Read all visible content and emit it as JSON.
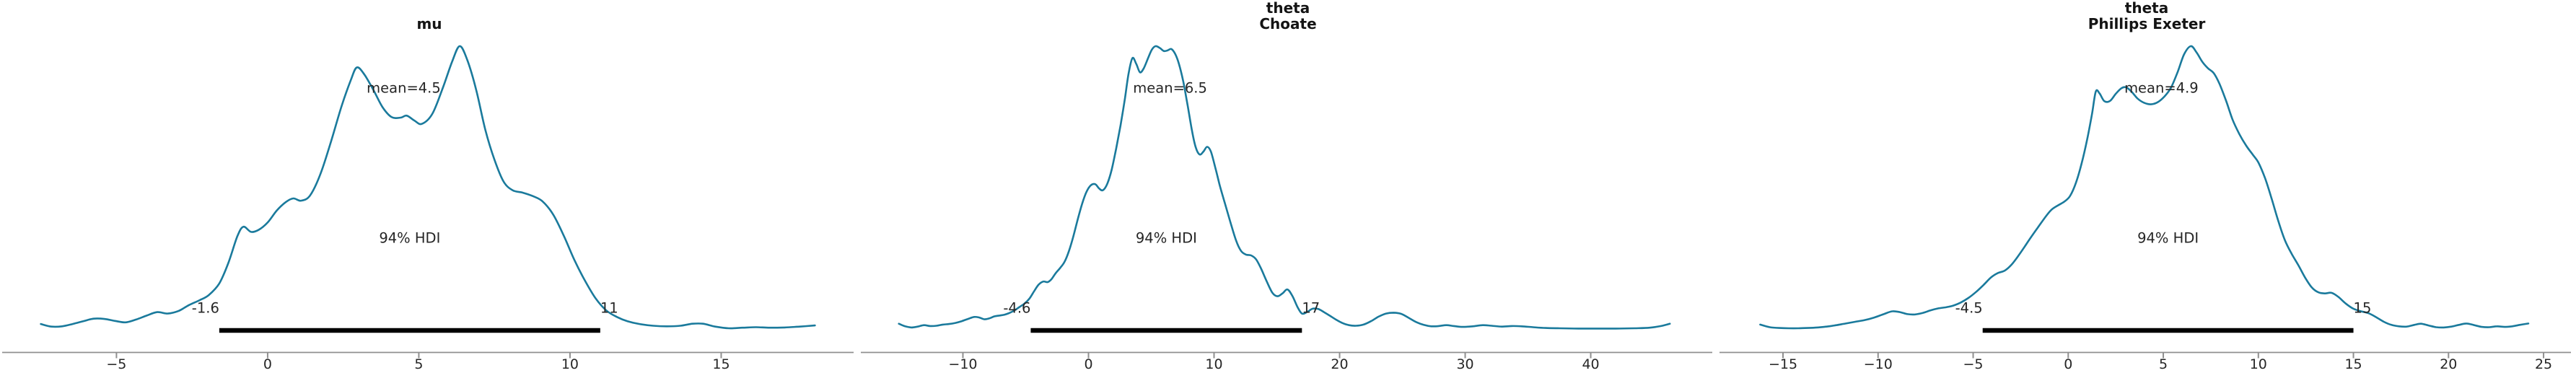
{
  "figure": {
    "background": "#ffffff",
    "curve_color": "#1a7a9c",
    "hdi_line_color": "#000000",
    "axis_color": "#8f8f8f",
    "tick_mark_color": "#8f8f8f",
    "tick_label_color": "#262626",
    "annotation_color": "#262626",
    "title_color": "#141414"
  },
  "chart_data": [
    {
      "type": "kde",
      "title": "mu",
      "title_line1": "mu",
      "title_line2": "",
      "mean": 4.5,
      "mean_label": "mean=4.5",
      "hdi_text": "94% HDI",
      "hdi_lo": -1.6,
      "hdi_hi": 11,
      "hdi_lo_label": "-1.6",
      "hdi_hi_label": "11",
      "x_range": [
        -8.78,
        19.38
      ],
      "x_ticks": [
        {
          "v": -5,
          "label": "−5"
        },
        {
          "v": 0,
          "label": "0"
        },
        {
          "v": 5,
          "label": "5"
        },
        {
          "v": 10,
          "label": "10"
        },
        {
          "v": 15,
          "label": "15"
        }
      ],
      "points": [
        [
          -7.5,
          0.02
        ],
        [
          -7.15,
          0.011
        ],
        [
          -6.8,
          0.012
        ],
        [
          -6.45,
          0.02
        ],
        [
          -6.1,
          0.03
        ],
        [
          -5.75,
          0.039
        ],
        [
          -5.4,
          0.038
        ],
        [
          -5.05,
          0.031
        ],
        [
          -4.7,
          0.026
        ],
        [
          -4.35,
          0.036
        ],
        [
          -4.0,
          0.05
        ],
        [
          -3.65,
          0.062
        ],
        [
          -3.3,
          0.057
        ],
        [
          -2.95,
          0.066
        ],
        [
          -2.6,
          0.087
        ],
        [
          -2.25,
          0.104
        ],
        [
          -1.95,
          0.122
        ],
        [
          -1.6,
          0.163
        ],
        [
          -1.3,
          0.235
        ],
        [
          -1.0,
          0.33
        ],
        [
          -0.8,
          0.363
        ],
        [
          -0.55,
          0.345
        ],
        [
          -0.3,
          0.352
        ],
        [
          0.0,
          0.378
        ],
        [
          0.3,
          0.42
        ],
        [
          0.6,
          0.45
        ],
        [
          0.85,
          0.463
        ],
        [
          1.1,
          0.455
        ],
        [
          1.4,
          0.473
        ],
        [
          1.75,
          0.55
        ],
        [
          2.1,
          0.665
        ],
        [
          2.45,
          0.79
        ],
        [
          2.75,
          0.88
        ],
        [
          2.95,
          0.925
        ],
        [
          3.2,
          0.9
        ],
        [
          3.5,
          0.845
        ],
        [
          3.8,
          0.785
        ],
        [
          4.1,
          0.75
        ],
        [
          4.4,
          0.748
        ],
        [
          4.6,
          0.755
        ],
        [
          4.85,
          0.738
        ],
        [
          5.1,
          0.726
        ],
        [
          5.45,
          0.762
        ],
        [
          5.8,
          0.855
        ],
        [
          6.1,
          0.945
        ],
        [
          6.35,
          1.0
        ],
        [
          6.6,
          0.952
        ],
        [
          6.9,
          0.845
        ],
        [
          7.2,
          0.705
        ],
        [
          7.5,
          0.6
        ],
        [
          7.8,
          0.523
        ],
        [
          8.1,
          0.492
        ],
        [
          8.45,
          0.483
        ],
        [
          8.8,
          0.47
        ],
        [
          9.1,
          0.452
        ],
        [
          9.45,
          0.405
        ],
        [
          9.8,
          0.33
        ],
        [
          10.15,
          0.245
        ],
        [
          10.5,
          0.172
        ],
        [
          10.85,
          0.11
        ],
        [
          11.2,
          0.068
        ],
        [
          11.55,
          0.045
        ],
        [
          11.9,
          0.03
        ],
        [
          12.3,
          0.02
        ],
        [
          12.75,
          0.014
        ],
        [
          13.2,
          0.012
        ],
        [
          13.65,
          0.014
        ],
        [
          14.05,
          0.021
        ],
        [
          14.4,
          0.021
        ],
        [
          14.8,
          0.011
        ],
        [
          15.25,
          0.005
        ],
        [
          15.7,
          0.007
        ],
        [
          16.15,
          0.009
        ],
        [
          16.6,
          0.007
        ],
        [
          17.1,
          0.008
        ],
        [
          17.6,
          0.011
        ],
        [
          18.1,
          0.015
        ]
      ]
    },
    {
      "type": "kde",
      "title": "theta Choate",
      "title_line1": "theta",
      "title_line2": "Choate",
      "mean": 6.5,
      "mean_label": "mean=6.5",
      "hdi_text": "94% HDI",
      "hdi_lo": -4.6,
      "hdi_hi": 17,
      "hdi_lo_label": "-4.6",
      "hdi_hi_label": "17",
      "x_range": [
        -18.13,
        49.68
      ],
      "x_ticks": [
        {
          "v": -10,
          "label": "−10"
        },
        {
          "v": 0,
          "label": "0"
        },
        {
          "v": 10,
          "label": "10"
        },
        {
          "v": 20,
          "label": "20"
        },
        {
          "v": 30,
          "label": "30"
        },
        {
          "v": 40,
          "label": "40"
        }
      ],
      "points": [
        [
          -15.1,
          0.021
        ],
        [
          -14.6,
          0.012
        ],
        [
          -14.1,
          0.008
        ],
        [
          -13.6,
          0.011
        ],
        [
          -13.1,
          0.016
        ],
        [
          -12.6,
          0.013
        ],
        [
          -12.1,
          0.014
        ],
        [
          -11.6,
          0.018
        ],
        [
          -11.1,
          0.02
        ],
        [
          -10.6,
          0.024
        ],
        [
          -10.1,
          0.03
        ],
        [
          -9.6,
          0.038
        ],
        [
          -9.1,
          0.045
        ],
        [
          -8.7,
          0.043
        ],
        [
          -8.3,
          0.037
        ],
        [
          -7.9,
          0.04
        ],
        [
          -7.5,
          0.047
        ],
        [
          -7.1,
          0.05
        ],
        [
          -6.7,
          0.053
        ],
        [
          -6.3,
          0.059
        ],
        [
          -5.9,
          0.068
        ],
        [
          -5.5,
          0.08
        ],
        [
          -5.1,
          0.092
        ],
        [
          -4.7,
          0.11
        ],
        [
          -4.3,
          0.138
        ],
        [
          -3.95,
          0.16
        ],
        [
          -3.6,
          0.17
        ],
        [
          -3.25,
          0.168
        ],
        [
          -2.95,
          0.178
        ],
        [
          -2.6,
          0.2
        ],
        [
          -2.25,
          0.218
        ],
        [
          -1.9,
          0.24
        ],
        [
          -1.55,
          0.278
        ],
        [
          -1.2,
          0.33
        ],
        [
          -0.85,
          0.39
        ],
        [
          -0.5,
          0.445
        ],
        [
          -0.15,
          0.487
        ],
        [
          0.2,
          0.51
        ],
        [
          0.55,
          0.513
        ],
        [
          0.85,
          0.498
        ],
        [
          1.15,
          0.492
        ],
        [
          1.5,
          0.515
        ],
        [
          1.85,
          0.565
        ],
        [
          2.2,
          0.638
        ],
        [
          2.55,
          0.72
        ],
        [
          2.9,
          0.815
        ],
        [
          3.2,
          0.905
        ],
        [
          3.5,
          0.958
        ],
        [
          3.8,
          0.938
        ],
        [
          4.1,
          0.908
        ],
        [
          4.4,
          0.922
        ],
        [
          4.75,
          0.958
        ],
        [
          5.05,
          0.988
        ],
        [
          5.35,
          1.0
        ],
        [
          5.7,
          0.993
        ],
        [
          6.0,
          0.983
        ],
        [
          6.3,
          0.985
        ],
        [
          6.6,
          0.99
        ],
        [
          6.9,
          0.973
        ],
        [
          7.2,
          0.938
        ],
        [
          7.55,
          0.875
        ],
        [
          7.9,
          0.79
        ],
        [
          8.25,
          0.7
        ],
        [
          8.55,
          0.642
        ],
        [
          8.85,
          0.618
        ],
        [
          9.15,
          0.628
        ],
        [
          9.45,
          0.645
        ],
        [
          9.75,
          0.628
        ],
        [
          10.1,
          0.572
        ],
        [
          10.45,
          0.51
        ],
        [
          10.85,
          0.448
        ],
        [
          11.3,
          0.38
        ],
        [
          11.75,
          0.315
        ],
        [
          12.15,
          0.278
        ],
        [
          12.55,
          0.265
        ],
        [
          12.95,
          0.262
        ],
        [
          13.35,
          0.248
        ],
        [
          13.75,
          0.215
        ],
        [
          14.2,
          0.17
        ],
        [
          14.65,
          0.13
        ],
        [
          15.05,
          0.118
        ],
        [
          15.45,
          0.128
        ],
        [
          15.85,
          0.142
        ],
        [
          16.25,
          0.118
        ],
        [
          16.65,
          0.08
        ],
        [
          17.0,
          0.057
        ],
        [
          17.4,
          0.062
        ],
        [
          17.85,
          0.074
        ],
        [
          18.3,
          0.073
        ],
        [
          18.75,
          0.062
        ],
        [
          19.2,
          0.05
        ],
        [
          19.7,
          0.036
        ],
        [
          20.2,
          0.024
        ],
        [
          20.75,
          0.016
        ],
        [
          21.3,
          0.014
        ],
        [
          21.9,
          0.018
        ],
        [
          22.5,
          0.03
        ],
        [
          23.1,
          0.046
        ],
        [
          23.7,
          0.057
        ],
        [
          24.3,
          0.06
        ],
        [
          24.9,
          0.056
        ],
        [
          25.5,
          0.042
        ],
        [
          26.1,
          0.027
        ],
        [
          26.7,
          0.017
        ],
        [
          27.3,
          0.012
        ],
        [
          27.9,
          0.013
        ],
        [
          28.5,
          0.016
        ],
        [
          29.1,
          0.013
        ],
        [
          29.8,
          0.01
        ],
        [
          30.6,
          0.012
        ],
        [
          31.4,
          0.016
        ],
        [
          32.1,
          0.014
        ],
        [
          32.9,
          0.011
        ],
        [
          33.7,
          0.013
        ],
        [
          34.5,
          0.012
        ],
        [
          35.4,
          0.009
        ],
        [
          36.4,
          0.006
        ],
        [
          37.5,
          0.005
        ],
        [
          39.0,
          0.004
        ],
        [
          40.5,
          0.004
        ],
        [
          42.0,
          0.004
        ],
        [
          43.5,
          0.005
        ],
        [
          44.7,
          0.007
        ],
        [
          45.6,
          0.013
        ],
        [
          46.3,
          0.021
        ]
      ]
    },
    {
      "type": "kde",
      "title": "theta Phillips Exeter",
      "title_line1": "theta",
      "title_line2": "Phillips Exeter",
      "mean": 4.9,
      "mean_label": "mean=4.9",
      "hdi_text": "94% HDI",
      "hdi_lo": -4.5,
      "hdi_hi": 15,
      "hdi_lo_label": "-4.5",
      "hdi_hi_label": "15",
      "x_range": [
        -18.34,
        26.44
      ],
      "x_ticks": [
        {
          "v": -15,
          "label": "−15"
        },
        {
          "v": -10,
          "label": "−10"
        },
        {
          "v": -5,
          "label": "−5"
        },
        {
          "v": 0,
          "label": "0"
        },
        {
          "v": 5,
          "label": "5"
        },
        {
          "v": 10,
          "label": "10"
        },
        {
          "v": 15,
          "label": "15"
        },
        {
          "v": 20,
          "label": "20"
        },
        {
          "v": 25,
          "label": "25"
        }
      ],
      "points": [
        [
          -16.2,
          0.018
        ],
        [
          -15.7,
          0.009
        ],
        [
          -15.2,
          0.006
        ],
        [
          -14.7,
          0.005
        ],
        [
          -14.2,
          0.005
        ],
        [
          -13.7,
          0.006
        ],
        [
          -13.2,
          0.008
        ],
        [
          -12.7,
          0.011
        ],
        [
          -12.2,
          0.016
        ],
        [
          -11.7,
          0.022
        ],
        [
          -11.2,
          0.028
        ],
        [
          -10.7,
          0.034
        ],
        [
          -10.2,
          0.043
        ],
        [
          -9.7,
          0.055
        ],
        [
          -9.25,
          0.065
        ],
        [
          -8.85,
          0.062
        ],
        [
          -8.45,
          0.055
        ],
        [
          -8.05,
          0.054
        ],
        [
          -7.65,
          0.059
        ],
        [
          -7.25,
          0.068
        ],
        [
          -6.85,
          0.075
        ],
        [
          -6.45,
          0.079
        ],
        [
          -6.05,
          0.085
        ],
        [
          -5.65,
          0.096
        ],
        [
          -5.25,
          0.112
        ],
        [
          -4.85,
          0.133
        ],
        [
          -4.45,
          0.158
        ],
        [
          -4.05,
          0.185
        ],
        [
          -3.7,
          0.2
        ],
        [
          -3.35,
          0.208
        ],
        [
          -3.0,
          0.228
        ],
        [
          -2.65,
          0.258
        ],
        [
          -2.3,
          0.292
        ],
        [
          -1.95,
          0.327
        ],
        [
          -1.6,
          0.36
        ],
        [
          -1.25,
          0.393
        ],
        [
          -0.9,
          0.422
        ],
        [
          -0.55,
          0.438
        ],
        [
          -0.2,
          0.452
        ],
        [
          0.1,
          0.472
        ],
        [
          0.4,
          0.517
        ],
        [
          0.7,
          0.585
        ],
        [
          1.0,
          0.672
        ],
        [
          1.25,
          0.76
        ],
        [
          1.45,
          0.84
        ],
        [
          1.65,
          0.833
        ],
        [
          1.9,
          0.806
        ],
        [
          2.2,
          0.807
        ],
        [
          2.5,
          0.832
        ],
        [
          2.8,
          0.852
        ],
        [
          3.05,
          0.855
        ],
        [
          3.35,
          0.838
        ],
        [
          3.65,
          0.815
        ],
        [
          4.0,
          0.8
        ],
        [
          4.35,
          0.795
        ],
        [
          4.7,
          0.802
        ],
        [
          5.05,
          0.822
        ],
        [
          5.4,
          0.853
        ],
        [
          5.75,
          0.908
        ],
        [
          6.1,
          0.972
        ],
        [
          6.45,
          1.0
        ],
        [
          6.75,
          0.978
        ],
        [
          7.05,
          0.945
        ],
        [
          7.35,
          0.922
        ],
        [
          7.65,
          0.905
        ],
        [
          7.95,
          0.868
        ],
        [
          8.3,
          0.808
        ],
        [
          8.65,
          0.74
        ],
        [
          9.0,
          0.69
        ],
        [
          9.35,
          0.65
        ],
        [
          9.7,
          0.618
        ],
        [
          10.0,
          0.59
        ],
        [
          10.35,
          0.535
        ],
        [
          10.7,
          0.462
        ],
        [
          11.05,
          0.383
        ],
        [
          11.4,
          0.315
        ],
        [
          11.75,
          0.268
        ],
        [
          12.1,
          0.228
        ],
        [
          12.45,
          0.185
        ],
        [
          12.8,
          0.15
        ],
        [
          13.15,
          0.132
        ],
        [
          13.5,
          0.128
        ],
        [
          13.85,
          0.13
        ],
        [
          14.2,
          0.116
        ],
        [
          14.6,
          0.092
        ],
        [
          15.0,
          0.074
        ],
        [
          15.4,
          0.065
        ],
        [
          15.8,
          0.058
        ],
        [
          16.2,
          0.044
        ],
        [
          16.6,
          0.028
        ],
        [
          17.0,
          0.017
        ],
        [
          17.4,
          0.012
        ],
        [
          17.8,
          0.011
        ],
        [
          18.2,
          0.017
        ],
        [
          18.55,
          0.021
        ],
        [
          18.95,
          0.015
        ],
        [
          19.35,
          0.009
        ],
        [
          19.75,
          0.008
        ],
        [
          20.15,
          0.011
        ],
        [
          20.55,
          0.017
        ],
        [
          20.95,
          0.022
        ],
        [
          21.35,
          0.016
        ],
        [
          21.75,
          0.01
        ],
        [
          22.15,
          0.009
        ],
        [
          22.55,
          0.012
        ],
        [
          22.95,
          0.01
        ],
        [
          23.35,
          0.012
        ],
        [
          23.75,
          0.017
        ],
        [
          24.2,
          0.022
        ]
      ]
    }
  ]
}
